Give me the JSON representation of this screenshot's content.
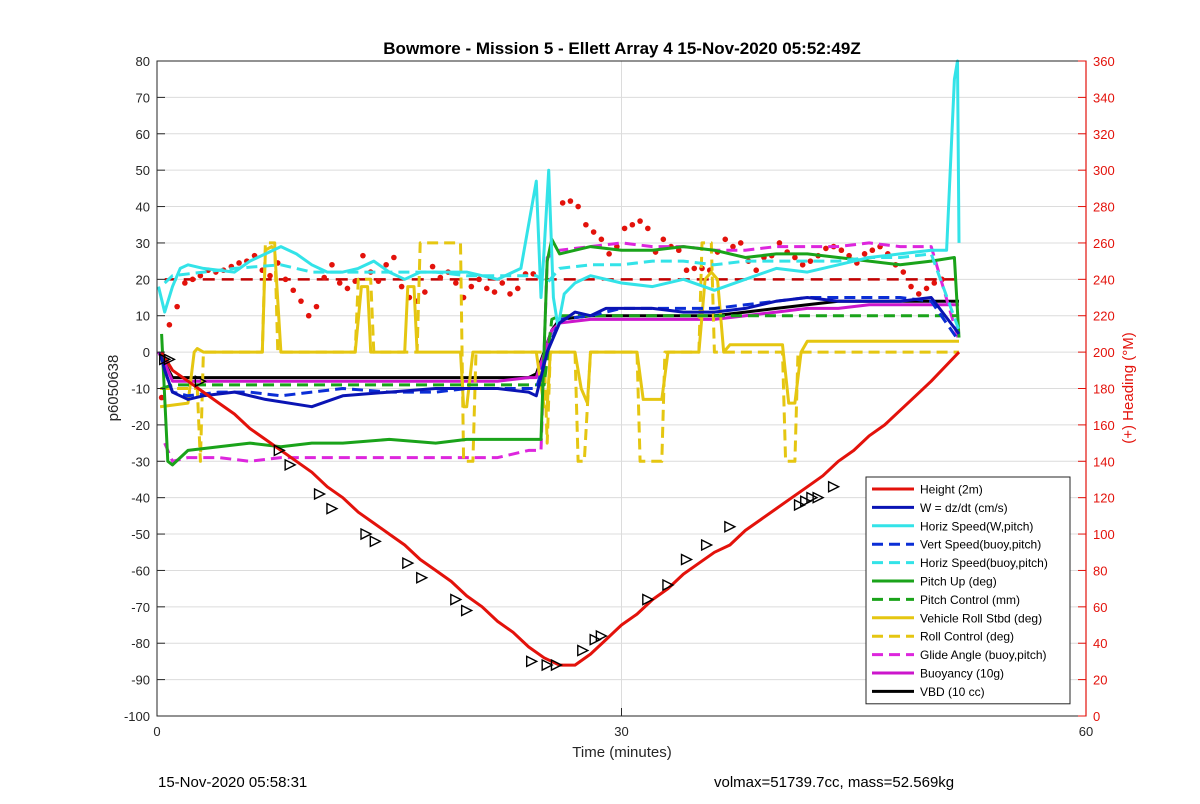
{
  "chart_data": {
    "type": "line",
    "title": "Bowmore - Mission 5 - Ellett Array 4 15-Nov-2020 05:52:49Z",
    "xlabel": "Time (minutes)",
    "ylabel": "p6050638",
    "ylabel_right": "(+) Heading (°M)",
    "xlim": [
      0,
      60
    ],
    "ylim": [
      -100,
      80
    ],
    "ylim_right": [
      0,
      360
    ],
    "xticks": [
      "0",
      "30",
      "60"
    ],
    "yticks": [
      "80",
      "70",
      "60",
      "50",
      "40",
      "30",
      "20",
      "10",
      "0",
      "-10",
      "-20",
      "-30",
      "-40",
      "-50",
      "-60",
      "-70",
      "-80",
      "-90",
      "-100"
    ],
    "yticks_right": [
      "360",
      "340",
      "320",
      "300",
      "280",
      "260",
      "240",
      "220",
      "200",
      "180",
      "160",
      "140",
      "120",
      "100",
      "80",
      "60",
      "40",
      "20",
      "0"
    ],
    "grid": true,
    "legend_position": "bottom-right",
    "series": [
      {
        "name": "Height (2m)",
        "color": "#e3120b",
        "style": "solid",
        "width": 3,
        "x": [
          0.3,
          1,
          2,
          3,
          4,
          5,
          6,
          7,
          8,
          9,
          10,
          11,
          12,
          13,
          14,
          15,
          16,
          17,
          18,
          19,
          20,
          21,
          22,
          23,
          24,
          25,
          26,
          27,
          28,
          29,
          30,
          31,
          32,
          33,
          34,
          35,
          36,
          37,
          38,
          39,
          40,
          41,
          42,
          43,
          44,
          45,
          46,
          47,
          48,
          49,
          50,
          51.8
        ],
        "y": [
          0,
          -5,
          -8,
          -11,
          -14,
          -17,
          -21,
          -24,
          -27,
          -30,
          -33,
          -37,
          -40,
          -44,
          -47,
          -50,
          -53,
          -57,
          -60,
          -63,
          -67,
          -70,
          -74,
          -77,
          -81,
          -84,
          -86,
          -86,
          -83,
          -79,
          -75,
          -72,
          -68,
          -65,
          -61,
          -58,
          -55,
          -53,
          -49,
          -46,
          -43,
          -40,
          -37,
          -34,
          -30,
          -27,
          -23,
          -20,
          -16,
          -12,
          -8,
          0
        ]
      },
      {
        "name": "W = dz/dt (cm/s)",
        "color": "#0a14b4",
        "style": "solid",
        "width": 3,
        "x": [
          0.2,
          0.5,
          1,
          1.5,
          2,
          3,
          5,
          7,
          10,
          12,
          15,
          18,
          20,
          22,
          24,
          24.5,
          25.2,
          26,
          27,
          28,
          29,
          30,
          32,
          34,
          36,
          38,
          40,
          42,
          44,
          46,
          48,
          50,
          51.8
        ],
        "y": [
          0,
          -5,
          -11,
          -12,
          -13,
          -12,
          -11,
          -13,
          -15,
          -12,
          -11,
          -10,
          -10,
          -10,
          -11,
          -12,
          0,
          8,
          11,
          10,
          12,
          12,
          12,
          11,
          11,
          12,
          14,
          15,
          14,
          14,
          14,
          15,
          5
        ]
      },
      {
        "name": "Horiz Speed(W,pitch)",
        "color": "#33e3e8",
        "style": "solid",
        "width": 3,
        "x": [
          0.1,
          0.5,
          1,
          1.5,
          2,
          3,
          5,
          6,
          7,
          8,
          9,
          10,
          11,
          12,
          13,
          14,
          15,
          16,
          17,
          18,
          20,
          22,
          23.5,
          24.5,
          24.8,
          25,
          25.3,
          25.6,
          25.9,
          26.3,
          27,
          28,
          30,
          32,
          34,
          36,
          38,
          40,
          42,
          44,
          46,
          48,
          50,
          51,
          51.5,
          51.7,
          51.8
        ],
        "y": [
          18,
          11,
          18,
          23,
          24,
          23,
          22,
          25,
          27,
          29,
          27,
          24,
          22,
          22,
          23,
          25,
          22,
          20,
          22,
          22,
          22,
          20,
          23,
          47,
          15,
          28,
          50,
          15,
          7,
          16,
          19,
          21,
          19,
          18,
          20,
          17,
          20,
          23,
          22,
          24,
          26,
          27,
          28,
          28,
          75,
          80,
          30
        ]
      },
      {
        "name": "Vert Speed(buoy,pitch)",
        "color": "#0b2ed6",
        "style": "dashed",
        "width": 3,
        "x": [
          0.5,
          1,
          2,
          4,
          6,
          8,
          10,
          12,
          15,
          18,
          20,
          22,
          24,
          24.5,
          25.2,
          26,
          28,
          30,
          32,
          34,
          36,
          38,
          40,
          42,
          44,
          46,
          48,
          50,
          51.8
        ],
        "y": [
          -5,
          -11,
          -12,
          -11,
          -11,
          -12,
          -11,
          -10,
          -11,
          -11,
          -10,
          -10,
          -10,
          -10,
          0,
          9,
          10,
          12,
          12,
          12,
          12,
          13,
          14,
          15,
          15,
          15,
          15,
          14,
          3
        ]
      },
      {
        "name": "Horiz Speed(buoy,pitch)",
        "color": "#33e3e8",
        "style": "dashed",
        "width": 3,
        "x": [
          0.5,
          1,
          3,
          5,
          8,
          10,
          12,
          15,
          18,
          20,
          22,
          24,
          24.5,
          25.2,
          26,
          28,
          30,
          32,
          34,
          36,
          38,
          40,
          42,
          44,
          46,
          48,
          50,
          51.8
        ],
        "y": [
          19,
          21,
          22,
          23,
          24,
          22,
          22,
          22,
          22,
          21,
          21,
          21,
          21,
          19,
          23,
          24,
          24,
          25,
          25,
          24,
          25,
          25,
          25,
          25,
          26,
          26,
          27,
          6
        ]
      },
      {
        "name": "Pitch Up (deg)",
        "color": "#1aa31a",
        "style": "solid",
        "width": 3,
        "x": [
          0.3,
          0.7,
          1,
          2,
          4,
          6,
          8,
          10,
          12,
          15,
          18,
          20,
          22,
          24,
          24.8,
          25.2,
          25.5,
          26,
          28,
          30,
          32,
          34,
          36,
          38,
          40,
          42,
          44,
          46,
          48,
          50,
          51.5,
          51.8
        ],
        "y": [
          5,
          -30,
          -31,
          -27,
          -26,
          -25,
          -26,
          -25,
          -25,
          -24,
          -25,
          -24,
          -24,
          -24,
          -24,
          25,
          31,
          27,
          29,
          28,
          28,
          29,
          28,
          26,
          27,
          27,
          26,
          25,
          24,
          25,
          26,
          4
        ]
      },
      {
        "name": "Pitch Control (mm)",
        "color": "#1aa31a",
        "style": "dashed",
        "width": 3,
        "x": [
          0.3,
          1,
          2,
          25,
          25.5,
          26,
          51.5,
          51.8
        ],
        "y": [
          -10,
          -9,
          -9,
          -9,
          9,
          10,
          10,
          10
        ]
      },
      {
        "name": "Vehicle Roll Stbd (deg)",
        "color": "#e5c611",
        "style": "solid",
        "width": 3,
        "x": [
          0.2,
          2,
          2.4,
          2.6,
          3,
          6.8,
          7.0,
          7.4,
          7.6,
          8,
          12.8,
          13.2,
          13.6,
          13.8,
          16,
          16.2,
          16.6,
          16.8,
          19.6,
          19.8,
          20,
          20.4,
          24.5,
          25,
          25.2,
          25.4,
          26,
          27,
          27.4,
          27.8,
          28,
          30,
          31,
          31.4,
          31.8,
          32.6,
          33,
          34,
          35,
          35.4,
          35.8,
          36.2,
          36.6,
          37,
          40.4,
          40.8,
          41.2,
          41.6,
          42,
          51.8
        ],
        "y": [
          -15,
          -14,
          0,
          1,
          0,
          0,
          28,
          29,
          28,
          0,
          0,
          18,
          18,
          0,
          0,
          18,
          18,
          0,
          0,
          -15,
          -15,
          0,
          0,
          -15,
          -15,
          0,
          0,
          0,
          -10,
          -14,
          0,
          0,
          0,
          -13,
          -13,
          -13,
          0,
          0,
          0,
          20,
          22,
          20,
          0,
          2,
          2,
          -14,
          -14,
          0,
          3,
          3
        ]
      },
      {
        "name": "Roll Control (deg)",
        "color": "#e5c611",
        "style": "dashed",
        "width": 3,
        "x": [
          0.2,
          2.6,
          2.8,
          3.0,
          6.8,
          7.0,
          7.6,
          7.8,
          12.8,
          13.0,
          13.8,
          14.0,
          16.8,
          17.0,
          19.6,
          19.8,
          20.4,
          20.6,
          24.5,
          25,
          25.2,
          25.4,
          27,
          27.2,
          27.6,
          28,
          31,
          31.2,
          32.6,
          32.8,
          35,
          35.2,
          35.8,
          36,
          40.4,
          40.6,
          41.2,
          41.4,
          51.8
        ],
        "y": [
          -10,
          -10,
          -30,
          0,
          0,
          30,
          30,
          0,
          0,
          20,
          20,
          0,
          0,
          30,
          30,
          -30,
          -30,
          0,
          0,
          0,
          -25,
          0,
          0,
          -30,
          -30,
          0,
          0,
          -30,
          -30,
          0,
          0,
          30,
          30,
          0,
          0,
          -30,
          -30,
          0,
          0
        ]
      },
      {
        "name": "Glide Angle (buoy,pitch)",
        "color": "#dd26dd",
        "style": "dashed",
        "width": 3,
        "x": [
          0.5,
          1,
          2,
          4,
          6,
          8,
          10,
          12,
          15,
          18,
          20,
          22,
          24,
          24.8,
          25.2,
          26,
          28,
          30,
          32,
          34,
          36,
          38,
          40,
          42,
          44,
          46,
          48,
          50,
          51.8
        ],
        "y": [
          -25,
          -30,
          -29,
          -29,
          -30,
          -29,
          -29,
          -29,
          -29,
          -29,
          -29,
          -29,
          -27,
          -27,
          26,
          28,
          29,
          30,
          29,
          29,
          28,
          28,
          29,
          29,
          29,
          30,
          29,
          29,
          3
        ]
      },
      {
        "name": "Buoyancy (10g)",
        "color": "#cc16cc",
        "style": "solid",
        "width": 3,
        "x": [
          0.1,
          0.5,
          1,
          2,
          4,
          6,
          8,
          10,
          12,
          15,
          18,
          20,
          22,
          24,
          24.5,
          25.5,
          26,
          28,
          30,
          32,
          34,
          36,
          38,
          40,
          42,
          44,
          46,
          48,
          50,
          51.8
        ],
        "y": [
          0,
          -3,
          -8,
          -8,
          -8,
          -8,
          -8,
          -8,
          -8,
          -8,
          -8,
          -8,
          -8,
          -7,
          -7,
          6,
          8,
          9,
          9,
          9,
          9,
          9,
          10,
          11,
          12,
          12,
          13,
          13,
          13,
          13
        ]
      },
      {
        "name": "VBD (10 cc)",
        "color": "#000000",
        "style": "solid",
        "width": 3,
        "x": [
          0.1,
          0.5,
          1,
          1.5,
          2,
          4,
          6,
          8,
          10,
          12,
          15,
          18,
          20,
          22,
          24,
          24.5,
          25.5,
          26,
          28,
          30,
          32,
          34,
          36,
          38,
          40,
          42,
          44,
          46,
          48,
          50,
          51.8
        ],
        "y": [
          0,
          -3,
          -7,
          -7,
          -7,
          -7,
          -7,
          -7,
          -7,
          -7,
          -7,
          -7,
          -7,
          -7,
          -7,
          -6,
          6,
          9,
          10,
          10,
          10,
          10,
          10,
          11,
          12,
          13,
          14,
          14,
          14,
          14,
          14
        ]
      }
    ],
    "heading_series": {
      "color": "#e3120b",
      "axis": "right",
      "x": [
        0.3,
        0.8,
        1.3,
        1.8,
        2.3,
        2.8,
        3.3,
        3.8,
        4.3,
        4.8,
        5.3,
        5.8,
        6.3,
        6.8,
        7.3,
        7.8,
        8.3,
        8.8,
        9.3,
        9.8,
        10.3,
        10.8,
        11.3,
        11.8,
        12.3,
        12.8,
        13.3,
        13.8,
        14.3,
        14.8,
        15.3,
        15.8,
        16.3,
        16.8,
        17.3,
        17.8,
        18.3,
        18.8,
        19.3,
        19.8,
        20.3,
        20.8,
        21.3,
        21.8,
        22.3,
        22.8,
        23.3,
        23.8,
        24.3,
        26.2,
        26.7,
        27.2,
        27.7,
        28.2,
        28.7,
        29.2,
        29.7,
        30.2,
        30.7,
        31.2,
        31.7,
        32.2,
        32.7,
        33.2,
        33.7,
        34.2,
        34.7,
        35.2,
        35.7,
        36.2,
        36.7,
        37.2,
        37.7,
        38.2,
        38.7,
        39.2,
        39.7,
        40.2,
        40.7,
        41.2,
        41.7,
        42.2,
        42.7,
        43.2,
        43.7,
        44.2,
        44.7,
        45.2,
        45.7,
        46.2,
        46.7,
        47.2,
        47.7,
        48.2,
        48.7,
        49.2,
        49.7,
        50.2,
        50.7
      ],
      "y": [
        175,
        215,
        225,
        238,
        240,
        242,
        245,
        244,
        245,
        247,
        249,
        250,
        253,
        245,
        242,
        249,
        240,
        234,
        228,
        220,
        225,
        241,
        248,
        238,
        235,
        239,
        253,
        244,
        239,
        248,
        252,
        236,
        230,
        228,
        233,
        247,
        241,
        244,
        238,
        230,
        236,
        240,
        235,
        233,
        238,
        232,
        235,
        243,
        243,
        282,
        283,
        280,
        270,
        266,
        262,
        254,
        258,
        268,
        270,
        272,
        268,
        255,
        262,
        258,
        256,
        245,
        246,
        246,
        245,
        255,
        262,
        258,
        260,
        250,
        245,
        252,
        253,
        260,
        255,
        252,
        248,
        250,
        253,
        257,
        258,
        256,
        253,
        249,
        254,
        256,
        258,
        254,
        248,
        244,
        236,
        232,
        235,
        238,
        240
      ]
    },
    "heading_reference": {
      "color": "#c00000",
      "style": "dashed",
      "y_right": 240
    },
    "markers": {
      "color": "#000000",
      "x": [
        0.5,
        0.8,
        2.8,
        7.9,
        8.6,
        10.5,
        11.3,
        13.5,
        14.1,
        16.2,
        17.1,
        19.3,
        20,
        24.2,
        25.2,
        25.8,
        27.5,
        28.3,
        28.7,
        31.7,
        33,
        34.2,
        35.5,
        37,
        41.5,
        41.9,
        42.3,
        42.7,
        43.7
      ],
      "y": [
        -2,
        -2,
        -8,
        -27,
        -31,
        -39,
        -43,
        -50,
        -52,
        -58,
        -62,
        -68,
        -71,
        -85,
        -86,
        -86,
        -82,
        -79,
        -78,
        -68,
        -64,
        -57,
        -53,
        -48,
        -42,
        -41,
        -40,
        -40,
        -37
      ]
    }
  },
  "footer": {
    "timestamp": "15-Nov-2020 05:58:31",
    "stats": "volmax=51739.7cc, mass=52.569kg"
  }
}
